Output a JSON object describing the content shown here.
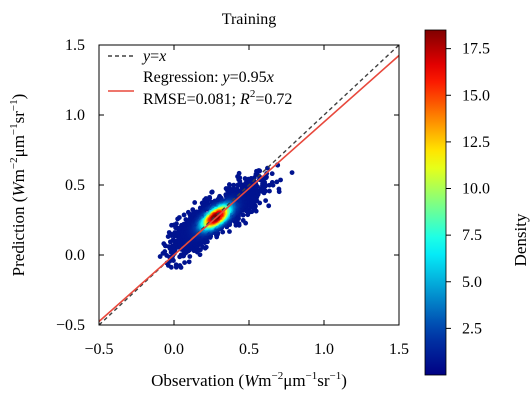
{
  "chart_data": {
    "type": "scatter",
    "title": "Training",
    "xlabel": "Observation (Wm⁻²μm⁻¹sr⁻¹)",
    "ylabel": "Prediction (Wm⁻²μm⁻¹sr⁻¹)",
    "xlim": [
      -0.5,
      1.5
    ],
    "ylim": [
      -0.5,
      1.5
    ],
    "xticks": [
      "−0.5",
      "0.0",
      "0.5",
      "1.0",
      "1.5"
    ],
    "yticks": [
      "−0.5",
      "0.0",
      "0.5",
      "1.0",
      "1.5"
    ],
    "xtick_values": [
      -0.5,
      0.0,
      0.5,
      1.0,
      1.5
    ],
    "ytick_values": [
      -0.5,
      0.0,
      0.5,
      1.0,
      1.5
    ],
    "grid": false,
    "legend_position": "top-left",
    "legend": [
      {
        "label": "y=x",
        "style": "dashed",
        "color": "#404040"
      },
      {
        "label": "Regression: y=0.95x",
        "style": "solid",
        "color": "#e8483c"
      },
      {
        "label": "RMSE=0.081; R²=0.72",
        "style": "none",
        "color": "#000000"
      }
    ],
    "lines": [
      {
        "name": "y=x",
        "slope": 1.0,
        "intercept": 0.0,
        "color": "#404040",
        "dash": true
      },
      {
        "name": "Regression",
        "slope": 0.95,
        "intercept": 0.0,
        "color": "#e8483c",
        "dash": false
      }
    ],
    "colorbar": {
      "label": "Density",
      "range": [
        0.0,
        18.5
      ],
      "ticks": [
        2.5,
        5.0,
        7.5,
        10.0,
        12.5,
        15.0,
        17.5
      ],
      "tick_labels": [
        "2.5",
        "5.0",
        "7.5",
        "10.0",
        "12.5",
        "15.0",
        "17.5"
      ],
      "colormap": "jet"
    },
    "points": {
      "count": 1400,
      "center": [
        0.28,
        0.27
      ],
      "x_range": [
        -0.1,
        0.8
      ],
      "y_range": [
        -0.1,
        0.65
      ],
      "density_max": 18.5
    }
  }
}
